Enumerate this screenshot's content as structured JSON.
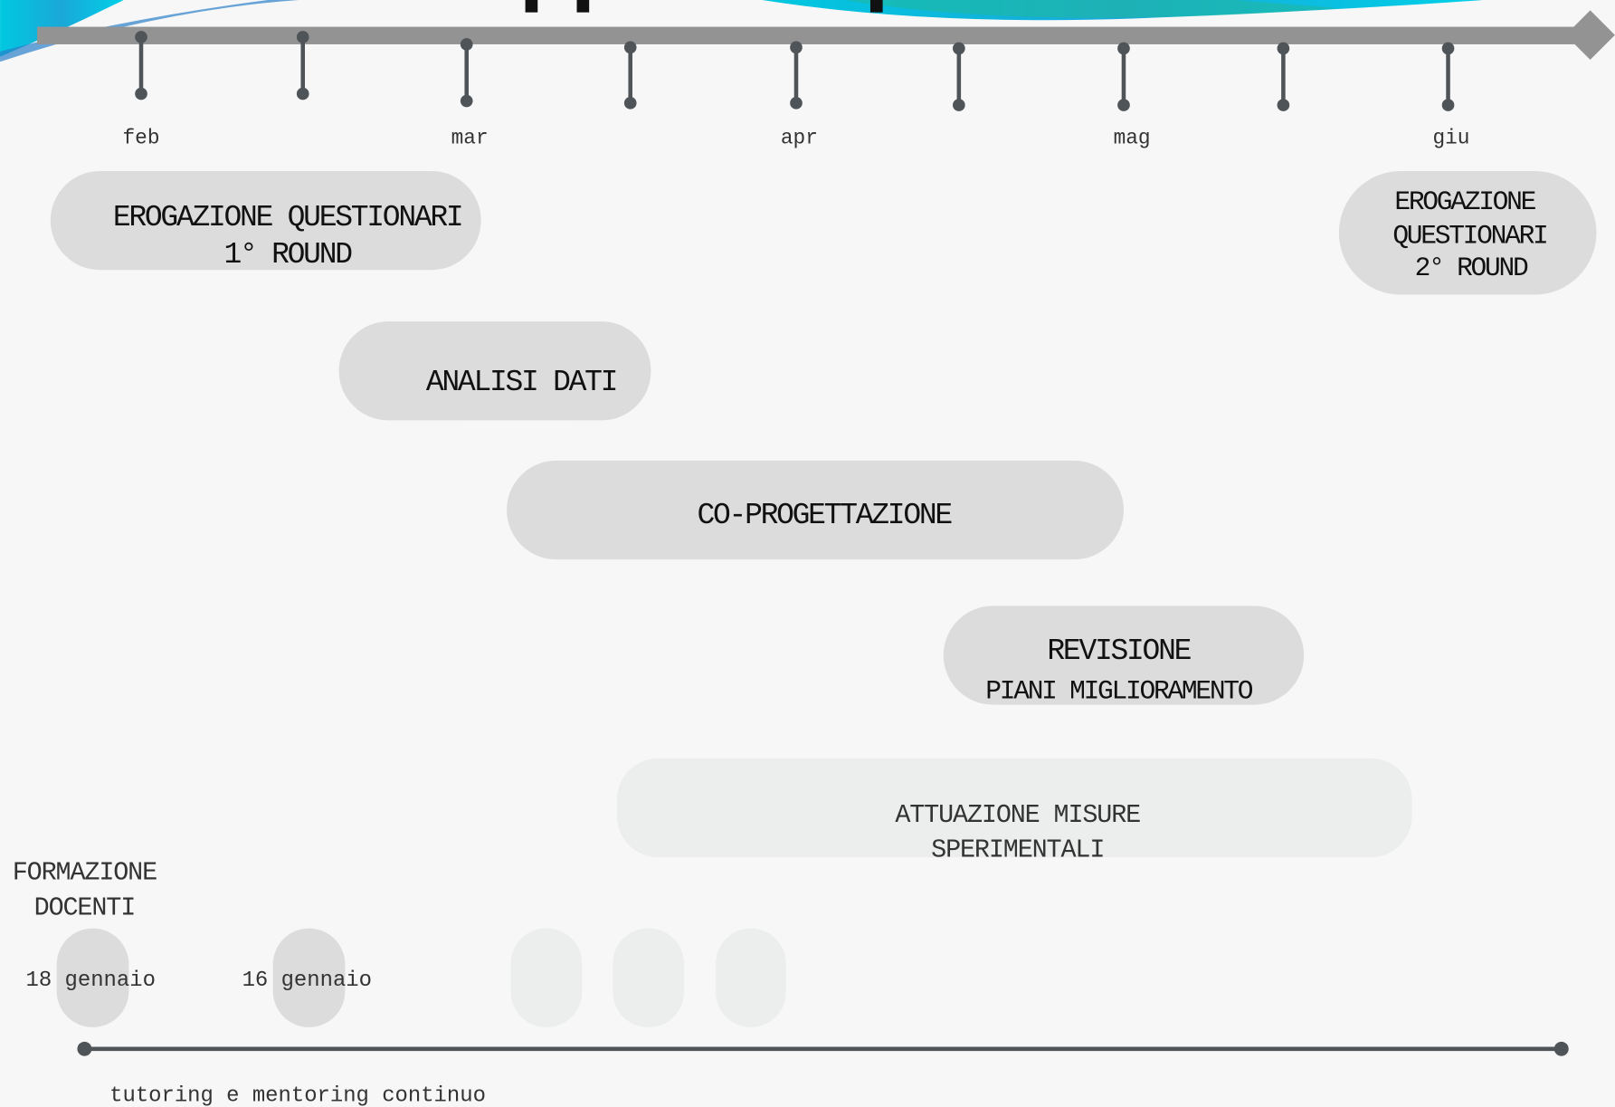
{
  "timeline": {
    "months": [
      "feb",
      "mar",
      "apr",
      "mag",
      "giu"
    ]
  },
  "activities": [
    {
      "lines": [
        "EROGAZIONE QUESTIONARI",
        "1° ROUND"
      ]
    },
    {
      "lines": [
        "ANALISI DATI"
      ]
    },
    {
      "lines": [
        "CO-PROGETTAZIONE"
      ]
    },
    {
      "lines": [
        "REVISIONE",
        "PIANI MIGLIORAMENTO"
      ]
    },
    {
      "lines": [
        "ATTUAZIONE MISURE",
        "SPERIMENTALI"
      ]
    },
    {
      "lines": [
        "EROGAZIONE",
        "QUESTIONARI",
        "2° ROUND"
      ]
    }
  ],
  "training": {
    "label": [
      "FORMAZIONE",
      "DOCENTI"
    ],
    "dates": [
      "18 gennaio",
      "16 gennaio"
    ]
  },
  "footer": {
    "label": "tutoring e mentoring continuo"
  }
}
